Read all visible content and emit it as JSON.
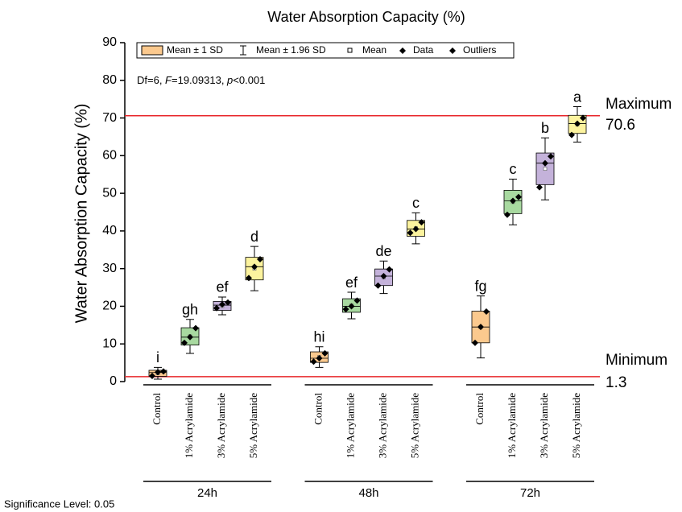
{
  "chart_data": {
    "type": "box",
    "title": "Water Absorption Capacity (%)",
    "y_label": "Water Absorption Capacity (%)",
    "ylim": [
      0,
      90
    ],
    "yticks": [
      0,
      10,
      20,
      30,
      40,
      50,
      60,
      70,
      80,
      90
    ],
    "legend": [
      "Mean ± 1 SD",
      "Mean ± 1.96 SD",
      "Mean",
      "Data",
      "Outliers"
    ],
    "legend_position": "top",
    "annotation": [
      "Df=6, ",
      "F",
      "=19.09313, ",
      "p",
      "<0.001"
    ],
    "footnote": "Significance Level: 0.05",
    "categories": [
      "Control",
      "1% Acrylamide",
      "3% Acrylamide",
      "5% Acrylamide"
    ],
    "colors": [
      "#fbc98e",
      "#a8d9a0",
      "#c4b2da",
      "#fcf39e"
    ],
    "reference_lines": [
      {
        "label": "Maximum",
        "value": 70.6,
        "color": "#e8262a"
      },
      {
        "label": "Minimum",
        "value": 1.3,
        "color": "#e8262a"
      }
    ],
    "groups": [
      {
        "name": "24h",
        "boxes": [
          {
            "mean": 2.2,
            "sd": 0.8,
            "median": 2.4,
            "points": [
              1.5,
              2.5,
              2.7
            ],
            "letter": "i"
          },
          {
            "mean": 12,
            "sd": 2.3,
            "median": 11.8,
            "points": [
              10.3,
              11.8,
              14.2
            ],
            "letter": "gh"
          },
          {
            "mean": 20.1,
            "sd": 1.2,
            "median": 20.3,
            "points": [
              19.5,
              20.5,
              21
            ],
            "letter": "ef"
          },
          {
            "mean": 30,
            "sd": 3,
            "median": 30.5,
            "points": [
              27.5,
              30.5,
              32.5
            ],
            "letter": "d"
          }
        ]
      },
      {
        "name": "48h",
        "boxes": [
          {
            "mean": 6.5,
            "sd": 1.4,
            "median": 6.2,
            "points": [
              5.3,
              6.2,
              7.5
            ],
            "letter": "hi"
          },
          {
            "mean": 20.2,
            "sd": 1.8,
            "median": 20,
            "points": [
              19.2,
              20,
              21.5
            ],
            "letter": "ef"
          },
          {
            "mean": 27.7,
            "sd": 2.2,
            "median": 28,
            "points": [
              25.5,
              28,
              29.8
            ],
            "letter": "de"
          },
          {
            "mean": 40.7,
            "sd": 2.1,
            "median": 40.5,
            "points": [
              39.5,
              40.5,
              42.3
            ],
            "letter": "c"
          }
        ]
      },
      {
        "name": "72h",
        "boxes": [
          {
            "mean": 14.5,
            "sd": 4.2,
            "median": 14.5,
            "points": [
              10.3,
              14.5,
              18.6
            ],
            "letter": "fg"
          },
          {
            "mean": 47.7,
            "sd": 3.1,
            "median": 48,
            "points": [
              44.3,
              48,
              49
            ],
            "letter": "c"
          },
          {
            "mean": 56.5,
            "sd": 4.2,
            "median": 58,
            "points": [
              51.6,
              58,
              59.8
            ],
            "letter": "b"
          },
          {
            "mean": 68.3,
            "sd": 2.4,
            "median": 68.5,
            "points": [
              65.5,
              68.5,
              70
            ],
            "letter": "a"
          }
        ]
      }
    ]
  }
}
